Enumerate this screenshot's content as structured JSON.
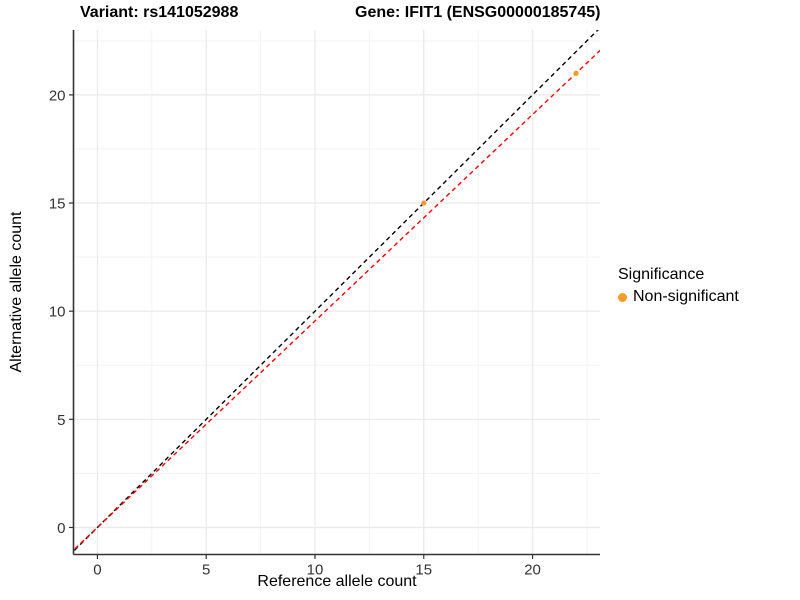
{
  "chart_data": {
    "type": "scatter",
    "title_left": "Variant: rs141052988",
    "title_right": "Gene: IFIT1 (ENSG00000185745)",
    "xlabel": "Reference allele count",
    "ylabel": "Alternative allele count",
    "xlim": [
      -1.1,
      23.1
    ],
    "ylim": [
      -1.25,
      23.0
    ],
    "x_ticks": [
      0,
      5,
      10,
      15,
      20
    ],
    "y_ticks": [
      0,
      5,
      10,
      15,
      20
    ],
    "x_minor_ticks": [
      2.5,
      7.5,
      12.5,
      17.5,
      22.5
    ],
    "y_minor_ticks": [
      2.5,
      7.5,
      12.5,
      17.5,
      22.5
    ],
    "grid": true,
    "points": [
      {
        "x": 15,
        "y": 15,
        "series": "Non-significant"
      },
      {
        "x": 22,
        "y": 21,
        "series": "Non-significant"
      }
    ],
    "lines": [
      {
        "name": "identity-line",
        "slope": 1.0,
        "intercept": 0,
        "style": "dashed",
        "color": "#000000"
      },
      {
        "name": "fit-line",
        "slope": 0.954545,
        "intercept": 0,
        "style": "dashed",
        "color": "#FF0000"
      }
    ],
    "legend": {
      "position": "right",
      "title": "Significance",
      "entries": [
        {
          "label": "Non-significant",
          "color": "#F89B26"
        }
      ]
    },
    "colors": {
      "point": "#F89B26",
      "grid_major": "#E9E9E9",
      "grid_minor": "#F3F3F3",
      "axis_line": "#333333",
      "tick_label": "#333333",
      "background": "#FFFFFF"
    }
  }
}
